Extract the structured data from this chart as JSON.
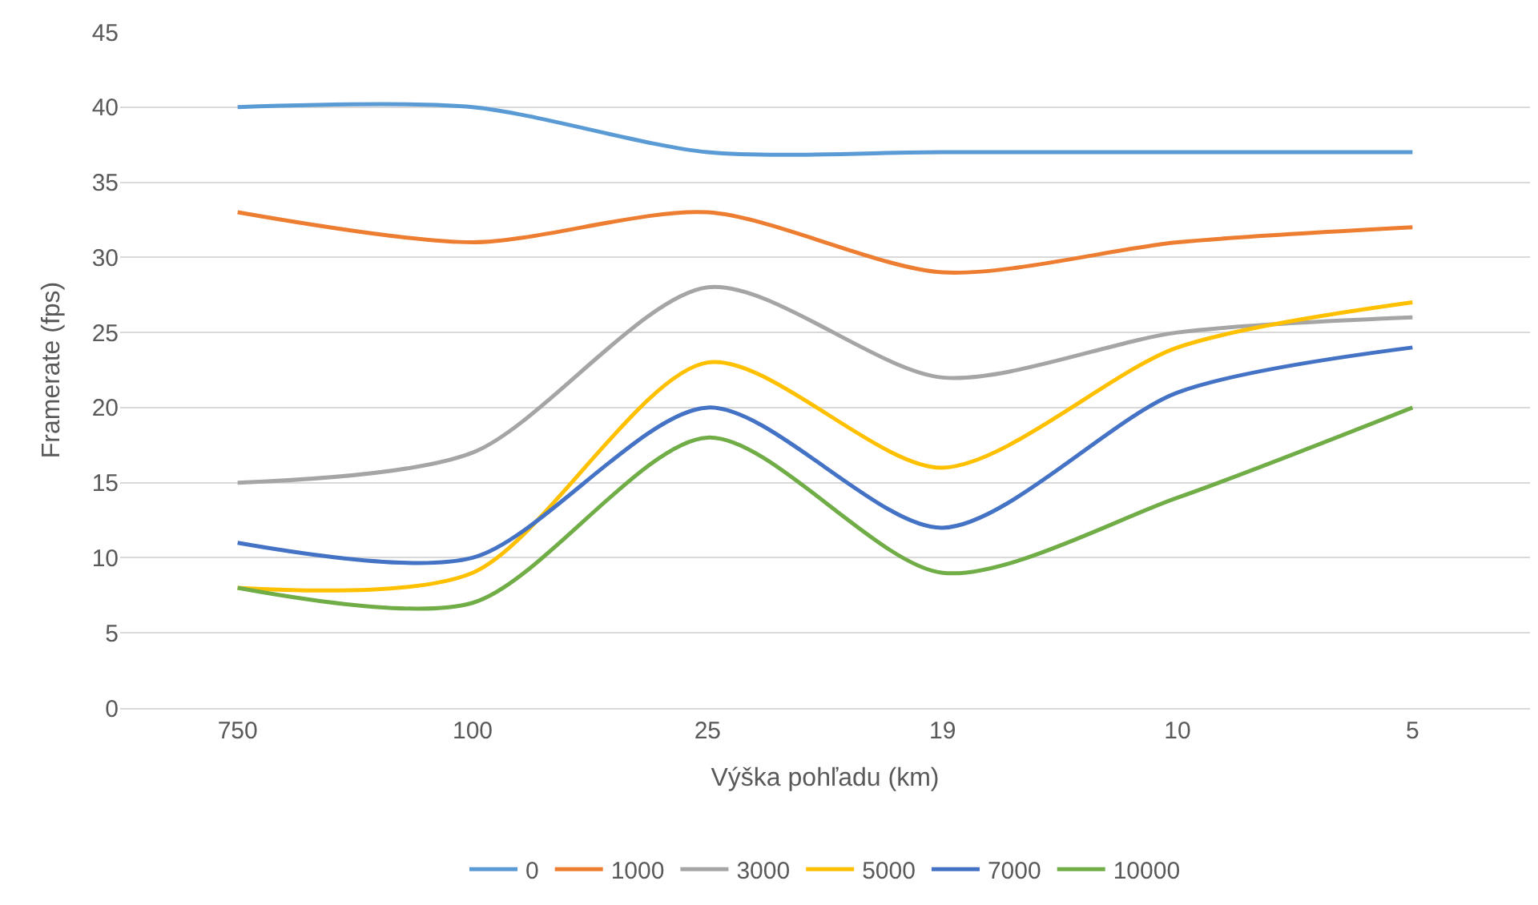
{
  "chart_data": {
    "type": "line",
    "xlabel": "Výška pohľadu (km)",
    "ylabel": "Framerate (fps)",
    "categories": [
      "750",
      "100",
      "25",
      "19",
      "10",
      "5"
    ],
    "series": [
      {
        "name": "0",
        "color": "#5b9bd5",
        "values": [
          40,
          40,
          37,
          37,
          37,
          37
        ]
      },
      {
        "name": "1000",
        "color": "#ed7d31",
        "values": [
          33,
          31,
          33,
          29,
          31,
          32
        ]
      },
      {
        "name": "3000",
        "color": "#a5a5a5",
        "values": [
          15,
          17,
          28,
          22,
          25,
          26
        ]
      },
      {
        "name": "5000",
        "color": "#ffc000",
        "values": [
          8,
          9,
          23,
          16,
          24,
          27
        ]
      },
      {
        "name": "7000",
        "color": "#4472c4",
        "values": [
          11,
          10,
          20,
          12,
          21,
          24
        ]
      },
      {
        "name": "10000",
        "color": "#70ad47",
        "values": [
          8,
          7,
          18,
          9,
          14,
          20
        ]
      }
    ],
    "ylim": [
      0,
      45
    ],
    "yticks": [
      0,
      5,
      10,
      15,
      20,
      25,
      30,
      35,
      40,
      45
    ],
    "grid": "y",
    "legend": "bottom",
    "marker": "none",
    "line_style": "solid"
  }
}
